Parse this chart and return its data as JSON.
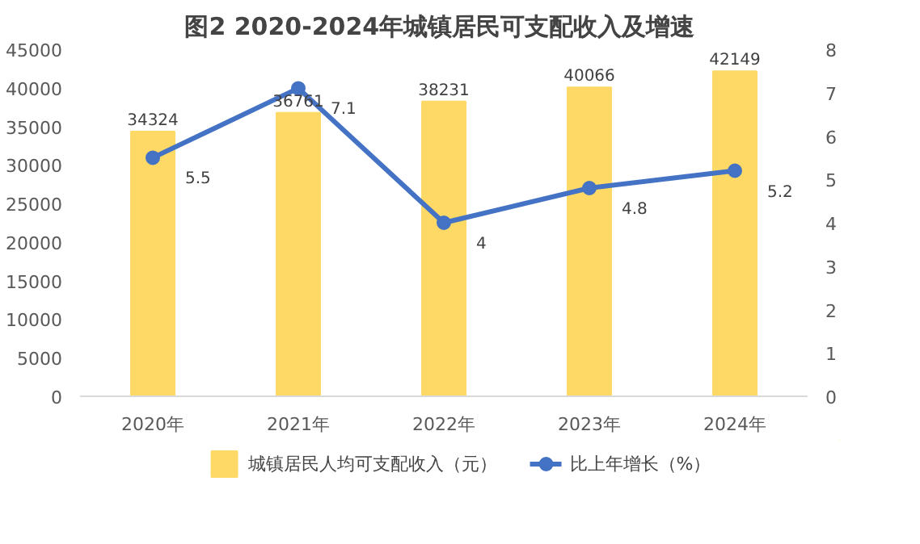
{
  "chart_data": {
    "type": "bar",
    "title": "图2  2020-2024年城镇居民可支配收入及增速",
    "categories": [
      "2020年",
      "2021年",
      "2022年",
      "2023年",
      "2024年"
    ],
    "series": [
      {
        "name": "城镇居民人均可支配收入（元）",
        "color": "#ffd966",
        "values": [
          34324,
          36761,
          38231,
          40066,
          42149
        ]
      },
      {
        "name": "比上年增长（%）",
        "type": "line",
        "axis": "y2",
        "color": "#4472c4",
        "marker": "circle",
        "values": [
          5.5,
          7.1,
          4,
          4.8,
          5.2
        ]
      }
    ],
    "ylim": [
      0,
      45000
    ],
    "yticks": [
      0,
      5000,
      10000,
      15000,
      20000,
      25000,
      30000,
      35000,
      40000,
      45000
    ],
    "y2lim": [
      0,
      8
    ],
    "y2ticks": [
      0,
      1,
      2,
      3,
      4,
      5,
      6,
      7,
      8
    ],
    "data_labels": true,
    "legend": "bottom",
    "grid": false
  }
}
